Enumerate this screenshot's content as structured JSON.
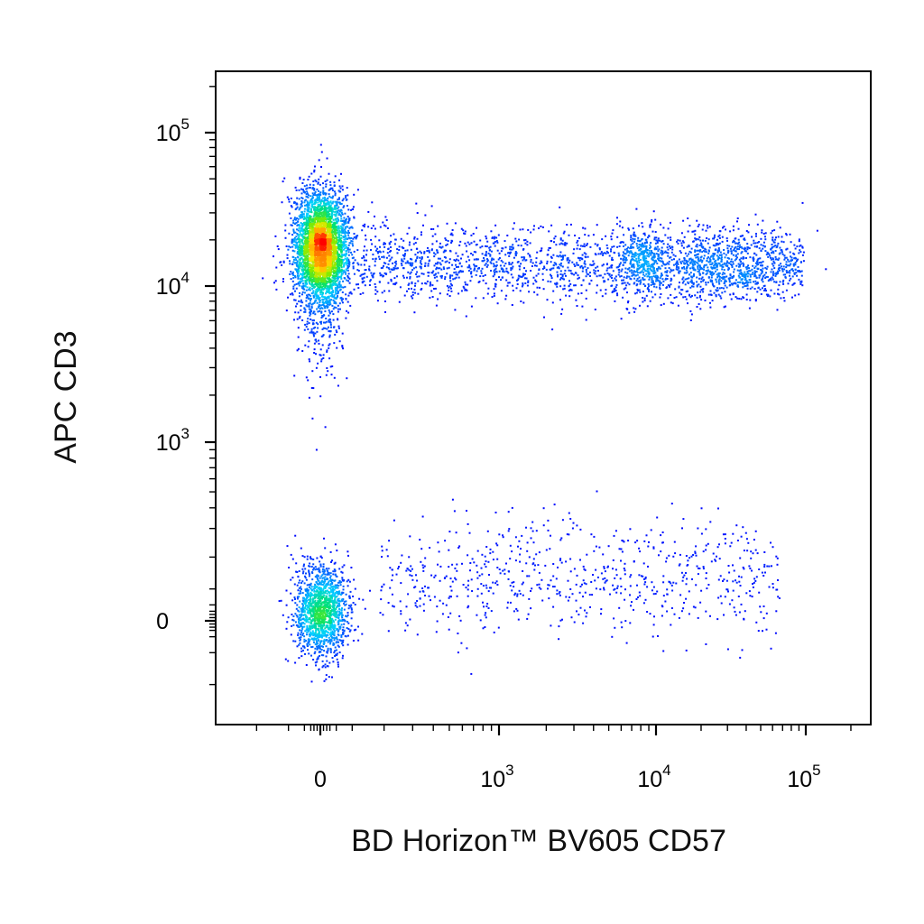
{
  "chart_data": {
    "type": "scatter",
    "style": "flow cytometry density dot plot (pseudocolor: blue low density to red high density)",
    "xlabel": "BD Horizon™ BV605 CD57",
    "ylabel": "APC CD3",
    "x_scale": "biexponential (logicle)",
    "y_scale": "biexponential (logicle)",
    "xlim": [
      -500,
      200000
    ],
    "ylim": [
      -300,
      250000
    ],
    "x_ticks": [
      {
        "value": 0,
        "base": "0",
        "exp": ""
      },
      {
        "value": 1000,
        "base": "10",
        "exp": "3"
      },
      {
        "value": 10000,
        "base": "10",
        "exp": "4"
      },
      {
        "value": 100000,
        "base": "10",
        "exp": "5"
      }
    ],
    "y_ticks": [
      {
        "value": 0,
        "base": "0",
        "exp": ""
      },
      {
        "value": 1000,
        "base": "10",
        "exp": "3"
      },
      {
        "value": 10000,
        "base": "10",
        "exp": "4"
      },
      {
        "value": 100000,
        "base": "10",
        "exp": "5"
      }
    ],
    "colors": {
      "low_density": "#0000ff",
      "mid_low": "#00c8ff",
      "mid": "#00e060",
      "mid_high": "#ffee00",
      "high_density": "#ff0000"
    },
    "populations": [
      {
        "id": "cd3pos_cd57neg",
        "cd57_center": 0,
        "cd3_center": 18000,
        "relative_count": 0.45,
        "peak_density": "high"
      },
      {
        "id": "cd3pos_cd57pos",
        "cd57_range": [
          150,
          70000
        ],
        "cd3_center": 14000,
        "relative_count": 0.3,
        "peak_density": "low-medium",
        "densest_cd57": 25000
      },
      {
        "id": "cd3neg_cd57neg",
        "cd57_center": 0,
        "cd3_center": 0,
        "relative_count": 0.17,
        "peak_density": "medium"
      },
      {
        "id": "cd3neg_cd57pos",
        "cd57_range": [
          200,
          60000
        ],
        "cd3_center": 50,
        "relative_count": 0.08,
        "peak_density": "low"
      }
    ]
  }
}
